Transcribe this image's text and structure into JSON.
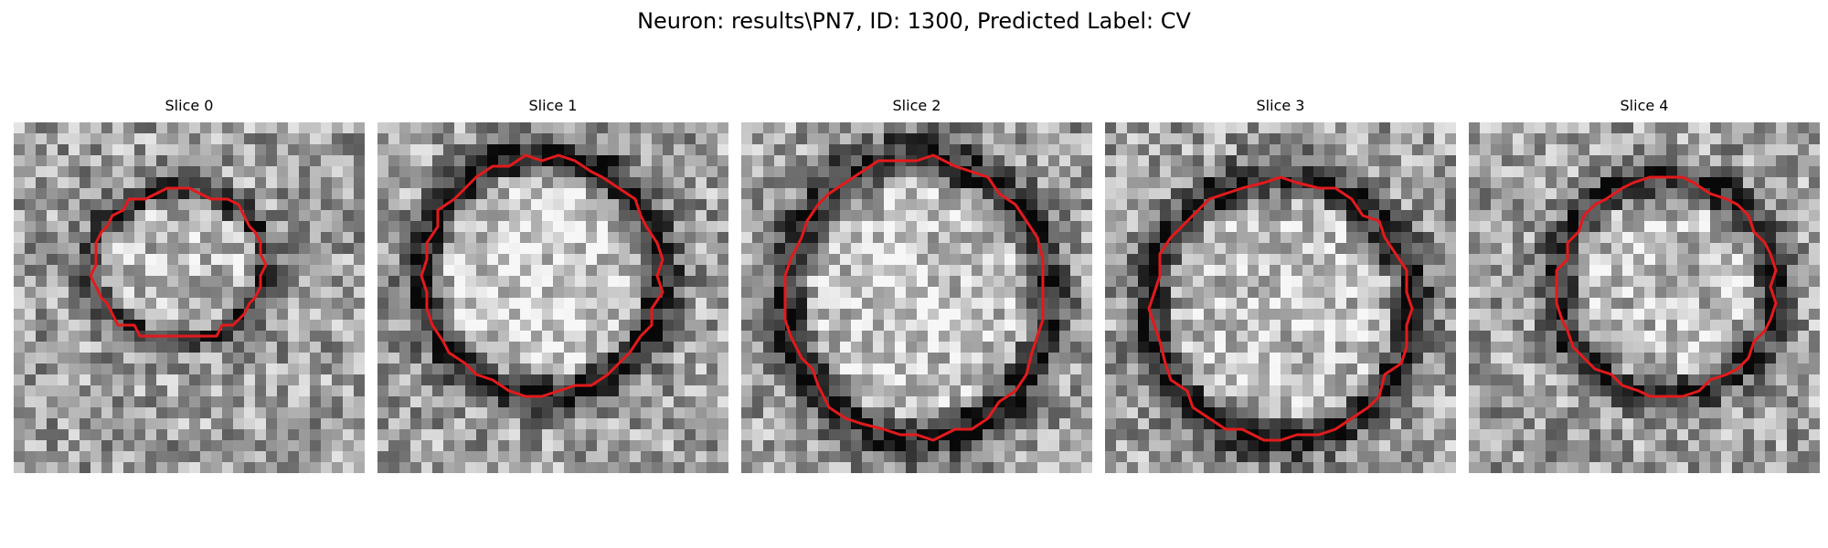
{
  "figure": {
    "suptitle": "Neuron: results\\PN7, ID: 1300, Predicted Label: CV",
    "contour_color": "#e31a1c",
    "colormap": "grayscale",
    "grid_size": 32
  },
  "panels": [
    {
      "title": "Slice 0",
      "seed": 11,
      "center": [
        15,
        13
      ],
      "radii": [
        8,
        7
      ],
      "rim_depth": 0.45,
      "inner_bright": 0.12
    },
    {
      "title": "Slice 1",
      "seed": 23,
      "center": [
        15,
        14
      ],
      "radii": [
        11,
        11
      ],
      "rim_depth": 0.55,
      "inner_bright": 0.18
    },
    {
      "title": "Slice 2",
      "seed": 37,
      "center": [
        16,
        16
      ],
      "radii": [
        12,
        13
      ],
      "rim_depth": 0.5,
      "inner_bright": 0.15
    },
    {
      "title": "Slice 3",
      "seed": 41,
      "center": [
        16,
        17
      ],
      "radii": [
        12,
        12
      ],
      "rim_depth": 0.5,
      "inner_bright": 0.14
    },
    {
      "title": "Slice 4",
      "seed": 59,
      "center": [
        18,
        15
      ],
      "radii": [
        10,
        10
      ],
      "rim_depth": 0.5,
      "inner_bright": 0.12
    }
  ]
}
